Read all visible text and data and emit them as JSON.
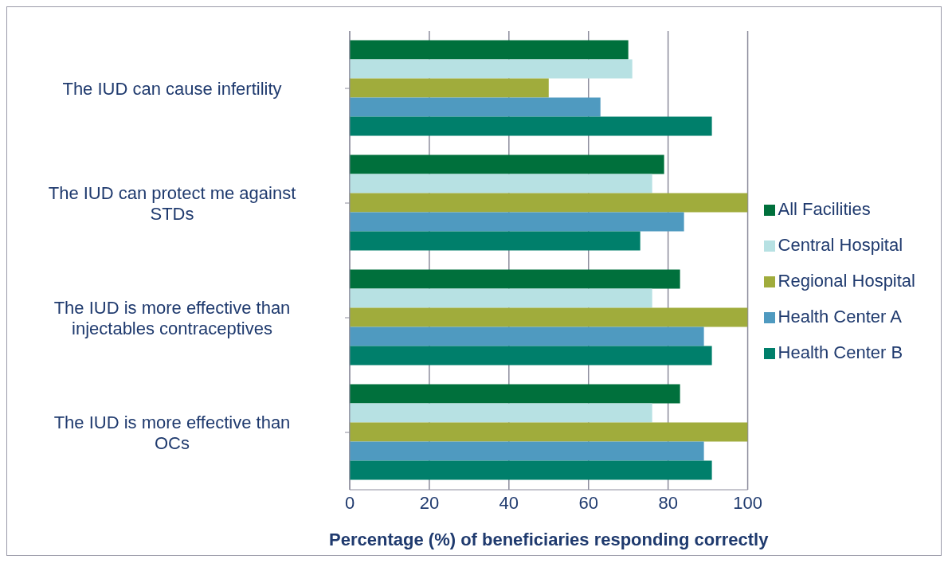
{
  "chart_data": {
    "type": "bar",
    "orientation": "horizontal",
    "xlabel": "Percentage (%) of beneficiaries responding correctly",
    "categories": [
      "The IUD can cause infertility",
      "The IUD can protect me against STDs",
      "The IUD is more effective than injectables contraceptives",
      "The IUD is more effective than OCs"
    ],
    "series": [
      {
        "name": "All Facilities",
        "color": "#00703c",
        "values": [
          70,
          79,
          83,
          83
        ]
      },
      {
        "name": "Central Hospital",
        "color": "#b7e1e3",
        "values": [
          71,
          76,
          76,
          76
        ]
      },
      {
        "name": "Regional Hospital",
        "color": "#a0ac3c",
        "values": [
          50,
          100,
          100,
          100
        ]
      },
      {
        "name": "Health Center A",
        "color": "#4f9ac0",
        "values": [
          63,
          84,
          89,
          89
        ]
      },
      {
        "name": "Health Center B",
        "color": "#007f6b",
        "values": [
          91,
          73,
          91,
          91
        ]
      }
    ],
    "xlim": [
      0,
      100
    ],
    "xticks": [
      0,
      20,
      40,
      60,
      80,
      100
    ],
    "grid": "x",
    "legend": "right"
  }
}
